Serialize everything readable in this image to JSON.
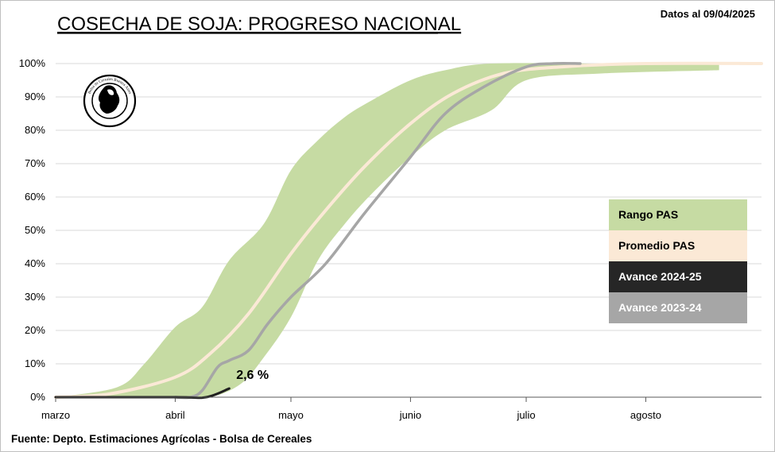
{
  "header": {
    "title": "COSECHA DE SOJA: PROGRESO NACIONAL",
    "date_note": "Datos al 09/04/2025"
  },
  "footer": {
    "source": "Fuente: Depto. Estimaciones Agrícolas - Bolsa de Cereales"
  },
  "logo": {
    "text": "Bolsa de Cereales Buenos Aires"
  },
  "annotation": {
    "text": "2,6 %"
  },
  "colors": {
    "range": "#c6dba3",
    "average": "#fbe9d6",
    "current": "#1f1f1f",
    "previous": "#a6a6a6",
    "grid": "#d9d9d9"
  },
  "chart_data": {
    "type": "area",
    "title": "COSECHA DE SOJA: PROGRESO NACIONAL",
    "x_unit": "date",
    "x_ticks": [
      "marzo",
      "abril",
      "mayo",
      "junio",
      "julio",
      "agosto"
    ],
    "x_tick_dates": [
      "03-01",
      "04-01",
      "05-01",
      "06-01",
      "07-01",
      "08-01"
    ],
    "xlim": [
      "03-01",
      "08-31"
    ],
    "ylim": [
      0,
      100
    ],
    "y_ticks": [
      "0%",
      "10%",
      "20%",
      "30%",
      "40%",
      "50%",
      "60%",
      "70%",
      "80%",
      "90%",
      "100%"
    ],
    "grid": true,
    "legend_position": "right",
    "series": [
      {
        "name": "Rango PAS",
        "kind": "band",
        "color": "#c6dba3",
        "upper": [
          [
            "03-01",
            0
          ],
          [
            "03-17",
            3
          ],
          [
            "03-24",
            10
          ],
          [
            "04-01",
            21
          ],
          [
            "04-08",
            27
          ],
          [
            "04-15",
            41
          ],
          [
            "04-24",
            52
          ],
          [
            "05-01",
            68
          ],
          [
            "05-08",
            77
          ],
          [
            "05-15",
            84
          ],
          [
            "05-22",
            89
          ],
          [
            "06-01",
            95
          ],
          [
            "06-10",
            98
          ],
          [
            "06-22",
            100
          ],
          [
            "07-20",
            100
          ],
          [
            "08-20",
            100
          ]
        ],
        "lower": [
          [
            "03-01",
            0
          ],
          [
            "04-01",
            0
          ],
          [
            "04-10",
            0
          ],
          [
            "04-18",
            4
          ],
          [
            "04-24",
            12
          ],
          [
            "05-01",
            24
          ],
          [
            "05-08",
            41
          ],
          [
            "05-15",
            52
          ],
          [
            "05-22",
            61
          ],
          [
            "06-01",
            72
          ],
          [
            "06-10",
            80
          ],
          [
            "06-22",
            86
          ],
          [
            "07-01",
            95
          ],
          [
            "07-20",
            97
          ],
          [
            "08-20",
            98
          ]
        ]
      },
      {
        "name": "Promedio PAS",
        "kind": "line",
        "color": "#fbe9d6",
        "points": [
          [
            "03-01",
            0
          ],
          [
            "03-15",
            1
          ],
          [
            "04-01",
            6
          ],
          [
            "04-10",
            13
          ],
          [
            "04-20",
            25
          ],
          [
            "05-01",
            43
          ],
          [
            "05-10",
            56
          ],
          [
            "05-20",
            69
          ],
          [
            "06-01",
            82
          ],
          [
            "06-12",
            91
          ],
          [
            "06-25",
            97
          ],
          [
            "07-10",
            99
          ],
          [
            "08-01",
            100
          ],
          [
            "08-31",
            100
          ]
        ]
      },
      {
        "name": "Avance 2023-24",
        "kind": "line",
        "color": "#a6a6a6",
        "points": [
          [
            "04-01",
            0
          ],
          [
            "04-05",
            0
          ],
          [
            "04-08",
            2
          ],
          [
            "04-12",
            9
          ],
          [
            "04-15",
            11
          ],
          [
            "04-20",
            14
          ],
          [
            "04-25",
            22
          ],
          [
            "05-01",
            30
          ],
          [
            "05-10",
            40
          ],
          [
            "05-20",
            55
          ],
          [
            "06-01",
            72
          ],
          [
            "06-10",
            85
          ],
          [
            "06-20",
            93
          ],
          [
            "07-01",
            99
          ],
          [
            "07-08",
            100
          ],
          [
            "07-15",
            100
          ]
        ]
      },
      {
        "name": "Avance 2024-25",
        "kind": "line",
        "color": "#1f1f1f",
        "points": [
          [
            "03-01",
            0
          ],
          [
            "04-01",
            0
          ],
          [
            "04-09",
            0
          ],
          [
            "04-15",
            2.6
          ]
        ]
      }
    ],
    "annotations": [
      {
        "text": "2,6 %",
        "x": "04-16",
        "y": 2.6
      }
    ]
  },
  "legend": {
    "items": [
      {
        "label": "Rango PAS",
        "bg": "#c6dba3",
        "fg": "#000000"
      },
      {
        "label": "Promedio PAS",
        "bg": "#fbe9d6",
        "fg": "#000000"
      },
      {
        "label": "Avance 2024-25",
        "bg": "#262626",
        "fg": "#ffffff"
      },
      {
        "label": "Avance 2023-24",
        "bg": "#a6a6a6",
        "fg": "#ffffff"
      }
    ]
  }
}
